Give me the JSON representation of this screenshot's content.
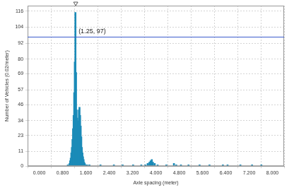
{
  "chart_data": {
    "type": "bar",
    "x_label": "Axle spacing (meter)",
    "y_label": "Number of Vehicles (0.02/meter)",
    "x": [
      0.98,
      1.04,
      1.06,
      1.08,
      1.1,
      1.12,
      1.14,
      1.16,
      1.18,
      1.2,
      1.22,
      1.24,
      1.26,
      1.28,
      1.3,
      1.32,
      1.34,
      1.36,
      1.38,
      1.4,
      1.42,
      1.44,
      1.46,
      1.48,
      1.5,
      1.52,
      1.54,
      1.56,
      1.58,
      1.64,
      1.72,
      2.1,
      2.56,
      2.86,
      3.22,
      3.5,
      3.64,
      3.72,
      3.78,
      3.82,
      3.86,
      3.9,
      3.96,
      4.06,
      4.36,
      4.62,
      4.7,
      4.86,
      5.12,
      5.5,
      5.84,
      6.3,
      6.46,
      6.9,
      7.3,
      7.62
    ],
    "values": [
      1,
      2,
      4,
      6,
      10,
      14,
      20,
      28,
      38,
      55,
      78,
      115,
      70,
      42,
      36,
      30,
      34,
      42,
      44,
      38,
      30,
      22,
      14,
      10,
      7,
      5,
      3,
      2,
      1,
      1,
      1,
      1,
      1,
      1,
      1,
      1,
      1,
      2,
      3,
      4,
      5,
      3,
      2,
      1,
      1,
      2,
      1,
      1,
      1,
      1,
      1,
      1,
      1,
      1,
      1,
      1
    ],
    "color": "#1b8bb8",
    "xlim": [
      0,
      8
    ],
    "xticks": [
      {
        "value": 0,
        "label": "0.000"
      },
      {
        "value": 0.8,
        "label": "0.800"
      },
      {
        "value": 1.6,
        "label": "1.600"
      },
      {
        "value": 2.4,
        "label": "2.400"
      },
      {
        "value": 3.2,
        "label": "3.200"
      },
      {
        "value": 4,
        "label": "4.000"
      },
      {
        "value": 4.8,
        "label": "4.800"
      },
      {
        "value": 5.6,
        "label": "5.600"
      },
      {
        "value": 6.4,
        "label": "6.400"
      },
      {
        "value": 7.2,
        "label": "7.200"
      },
      {
        "value": 8,
        "label": "8.000"
      }
    ],
    "ylim": [
      0,
      120
    ],
    "yticks": [
      0,
      11,
      23,
      34,
      46,
      57,
      69,
      80,
      92,
      104,
      116
    ],
    "grid": true,
    "annotations": [
      {
        "text": "(1.25, 97)",
        "x": 1.25,
        "y": 97,
        "color": "#3a5ccc"
      }
    ]
  }
}
